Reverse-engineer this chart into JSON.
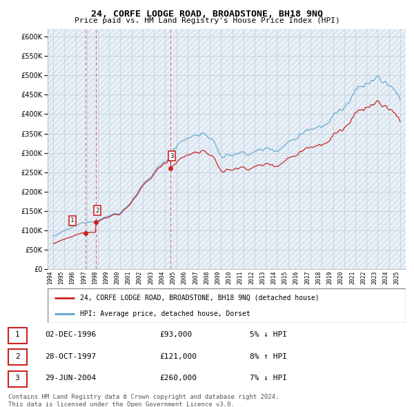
{
  "title": "24, CORFE LODGE ROAD, BROADSTONE, BH18 9NQ",
  "subtitle": "Price paid vs. HM Land Registry's House Price Index (HPI)",
  "legend_label_red": "24, CORFE LODGE ROAD, BROADSTONE, BH18 9NQ (detached house)",
  "legend_label_blue": "HPI: Average price, detached house, Dorset",
  "transactions": [
    {
      "num": 1,
      "date": "02-DEC-1996",
      "price": 93000,
      "pct": "5%",
      "dir": "↓",
      "year": 1996.92
    },
    {
      "num": 2,
      "date": "28-OCT-1997",
      "price": 121000,
      "pct": "8%",
      "dir": "↑",
      "year": 1997.83
    },
    {
      "num": 3,
      "date": "29-JUN-2004",
      "price": 260000,
      "pct": "7%",
      "dir": "↓",
      "year": 2004.49
    }
  ],
  "footer": "Contains HM Land Registry data © Crown copyright and database right 2024.\nThis data is licensed under the Open Government Licence v3.0.",
  "hpi_color": "#5ba3d0",
  "price_color": "#cc2222",
  "marker_color": "#cc2222",
  "bg_color": "#e8f0f8",
  "grid_color": "#c8d4e0",
  "ylim": [
    0,
    620000
  ],
  "xlim_start": 1993.5,
  "xlim_end": 2025.5,
  "yticks": [
    0,
    50000,
    100000,
    150000,
    200000,
    250000,
    300000,
    350000,
    400000,
    450000,
    500000,
    550000,
    600000
  ],
  "xticks": [
    1994,
    1995,
    1996,
    1997,
    1998,
    1999,
    2000,
    2001,
    2002,
    2003,
    2004,
    2005,
    2006,
    2007,
    2008,
    2009,
    2010,
    2011,
    2012,
    2013,
    2014,
    2015,
    2016,
    2017,
    2018,
    2019,
    2020,
    2021,
    2022,
    2023,
    2024,
    2025
  ]
}
